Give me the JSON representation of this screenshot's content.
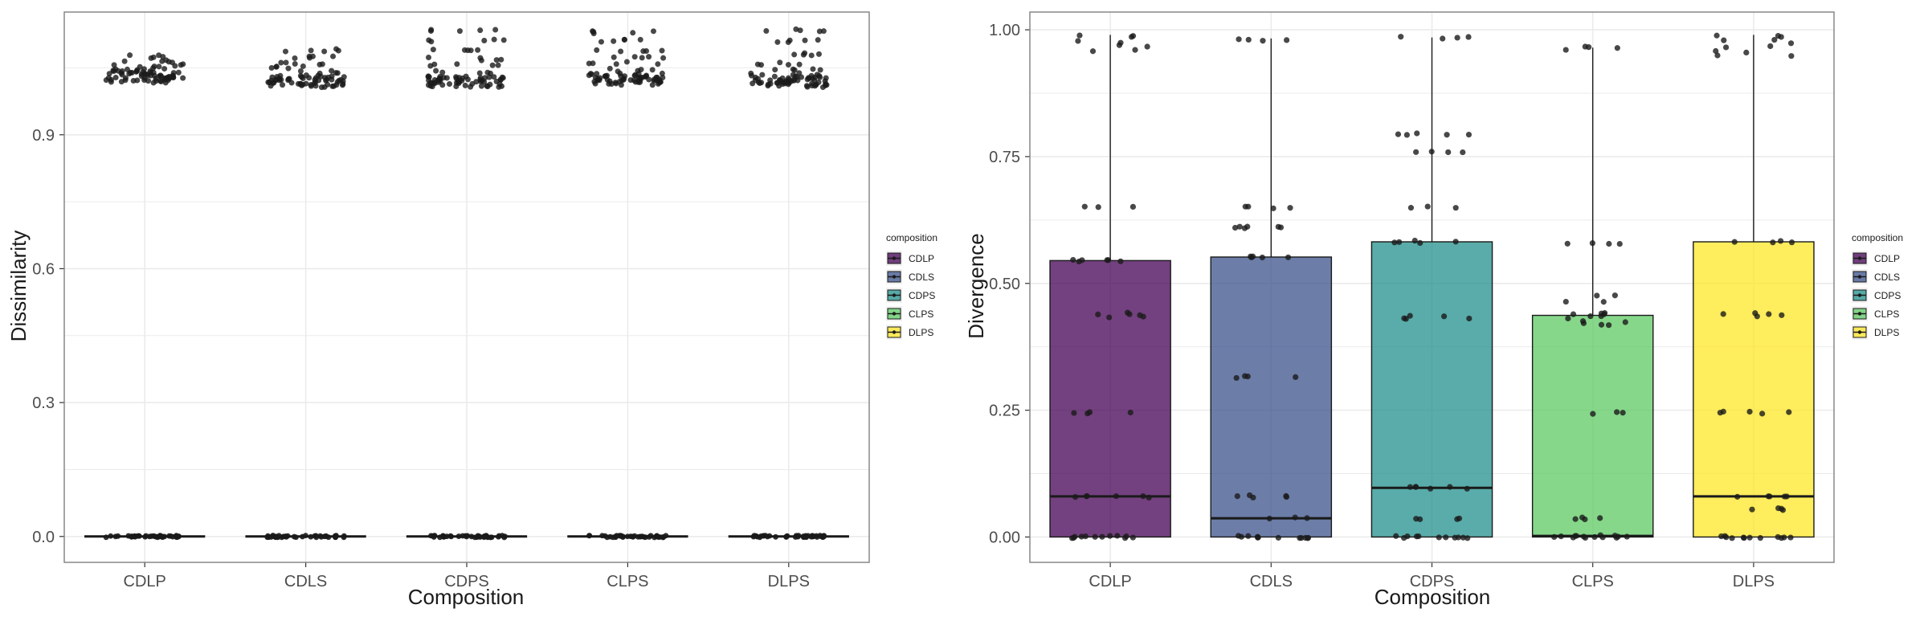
{
  "colors": {
    "CDLP": "#440154",
    "CDLS": "#3b528b",
    "CDPS": "#21908c",
    "CLPS": "#5dc963",
    "DLPS": "#fde725",
    "point": "#1a1a1a",
    "grid": "#ebebeb",
    "panel_border": "#7f7f7f",
    "text": "#1a1a1a",
    "tick_text": "#4d4d4d"
  },
  "chart_data": [
    {
      "type": "boxplot_with_jitter",
      "xlabel": "Composition",
      "ylabel": "Dissimilarity",
      "categories": [
        "CDLP",
        "CDLS",
        "CDPS",
        "CLPS",
        "DLPS"
      ],
      "yticks": [
        "0.0",
        "0.3",
        "0.6",
        "0.9"
      ],
      "ytick_values": [
        0,
        0.3,
        0.6,
        0.9
      ],
      "ylim": [
        -0.058,
        1.175
      ],
      "legend": {
        "title": "composition",
        "position": "right",
        "entries": [
          "CDLP",
          "CDLS",
          "CDPS",
          "CLPS",
          "DLPS"
        ]
      },
      "boxes": [
        {
          "category": "CDLP",
          "q1": 0,
          "median": 0,
          "q3": 0,
          "lower": 0,
          "upper": 0
        },
        {
          "category": "CDLS",
          "q1": 0,
          "median": 0,
          "q3": 0,
          "lower": 0,
          "upper": 0
        },
        {
          "category": "CDPS",
          "q1": 0,
          "median": 0,
          "q3": 0,
          "lower": 0,
          "upper": 0
        },
        {
          "category": "CLPS",
          "q1": 0,
          "median": 0,
          "q3": 0,
          "lower": 0,
          "upper": 0
        },
        {
          "category": "DLPS",
          "q1": 0,
          "median": 0,
          "q3": 0,
          "lower": 0,
          "upper": 0
        }
      ],
      "outlier_clusters": [
        {
          "category": "CDLP",
          "values": [
            1.02,
            1.025,
            1.03,
            1.035,
            1.04,
            1.045,
            1.05,
            1.055,
            1.065,
            1.075
          ]
        },
        {
          "category": "CDLS",
          "values": [
            1.01,
            1.015,
            1.02,
            1.025,
            1.03,
            1.04,
            1.05,
            1.06,
            1.075,
            1.09
          ]
        },
        {
          "category": "CDPS",
          "values": [
            1.01,
            1.015,
            1.02,
            1.025,
            1.03,
            1.04,
            1.055,
            1.07,
            1.09,
            1.11,
            1.135
          ]
        },
        {
          "category": "CLPS",
          "values": [
            1.015,
            1.02,
            1.025,
            1.03,
            1.035,
            1.045,
            1.06,
            1.075,
            1.09,
            1.11,
            1.13
          ]
        },
        {
          "category": "DLPS",
          "values": [
            1.01,
            1.015,
            1.02,
            1.025,
            1.03,
            1.035,
            1.045,
            1.06,
            1.08,
            1.11,
            1.135
          ]
        }
      ],
      "zero_points_per_category": 40
    },
    {
      "type": "boxplot_with_jitter",
      "xlabel": "Composition",
      "ylabel": "Divergence",
      "categories": [
        "CDLP",
        "CDLS",
        "CDPS",
        "CLPS",
        "DLPS"
      ],
      "yticks": [
        "0.00",
        "0.25",
        "0.50",
        "0.75",
        "1.00"
      ],
      "ytick_values": [
        0,
        0.25,
        0.5,
        0.75,
        1.0
      ],
      "ylim": [
        -0.05,
        1.035
      ],
      "legend": {
        "title": "composition",
        "position": "right",
        "entries": [
          "CDLP",
          "CDLS",
          "CDPS",
          "CLPS",
          "DLPS"
        ]
      },
      "boxes": [
        {
          "category": "CDLP",
          "q1": 0,
          "median": 0.08,
          "q3": 0.545,
          "lower": 0,
          "upper": 0.99
        },
        {
          "category": "CDLS",
          "q1": 0,
          "median": 0.037,
          "q3": 0.552,
          "lower": 0,
          "upper": 0.983
        },
        {
          "category": "CDPS",
          "q1": 0,
          "median": 0.097,
          "q3": 0.582,
          "lower": 0,
          "upper": 0.985
        },
        {
          "category": "CLPS",
          "q1": 0,
          "median": 0.002,
          "q3": 0.437,
          "lower": 0,
          "upper": 0.965
        },
        {
          "category": "DLPS",
          "q1": 0,
          "median": 0.08,
          "q3": 0.582,
          "lower": 0,
          "upper": 0.99
        }
      ],
      "points": [
        {
          "category": "CDLP",
          "values": [
            0,
            0,
            0,
            0,
            0,
            0,
            0,
            0,
            0,
            0,
            0,
            0,
            0.08,
            0.08,
            0.08,
            0.08,
            0.08,
            0.08,
            0.245,
            0.245,
            0.245,
            0.245,
            0.435,
            0.435,
            0.44,
            0.44,
            0.44,
            0.435,
            0.545,
            0.545,
            0.545,
            0.545,
            0.545,
            0.545,
            0.65,
            0.65,
            0.65,
            0.96,
            0.965,
            0.97,
            0.975,
            0.98,
            0.985,
            0.99,
            0.99,
            0.96
          ]
        },
        {
          "category": "CDLS",
          "values": [
            0,
            0,
            0,
            0,
            0,
            0,
            0,
            0,
            0,
            0,
            0,
            0,
            0.037,
            0.037,
            0.037,
            0.08,
            0.08,
            0.08,
            0.08,
            0.08,
            0.315,
            0.315,
            0.315,
            0.315,
            0.552,
            0.552,
            0.552,
            0.552,
            0.552,
            0.61,
            0.61,
            0.61,
            0.61,
            0.61,
            0.61,
            0.65,
            0.65,
            0.65,
            0.65,
            0.98,
            0.98,
            0.98,
            0.983
          ]
        },
        {
          "category": "CDPS",
          "values": [
            0,
            0,
            0,
            0,
            0,
            0,
            0,
            0,
            0,
            0,
            0,
            0.035,
            0.035,
            0.035,
            0.035,
            0.097,
            0.097,
            0.097,
            0.097,
            0.097,
            0.097,
            0.43,
            0.43,
            0.43,
            0.435,
            0.435,
            0.58,
            0.582,
            0.582,
            0.582,
            0.582,
            0.65,
            0.65,
            0.65,
            0.76,
            0.76,
            0.76,
            0.76,
            0.795,
            0.795,
            0.795,
            0.795,
            0.795,
            0.985,
            0.985,
            0.985,
            0.985
          ]
        },
        {
          "category": "CLPS",
          "values": [
            0,
            0,
            0,
            0,
            0,
            0,
            0,
            0,
            0,
            0,
            0,
            0,
            0.002,
            0.002,
            0.037,
            0.037,
            0.037,
            0.037,
            0.245,
            0.245,
            0.245,
            0.42,
            0.42,
            0.42,
            0.425,
            0.425,
            0.43,
            0.437,
            0.437,
            0.44,
            0.44,
            0.44,
            0.44,
            0.465,
            0.465,
            0.475,
            0.475,
            0.58,
            0.58,
            0.58,
            0.58,
            0.965,
            0.965,
            0.965,
            0.962
          ]
        },
        {
          "category": "DLPS",
          "values": [
            0,
            0,
            0,
            0,
            0,
            0,
            0,
            0,
            0,
            0,
            0,
            0,
            0.055,
            0.055,
            0.055,
            0.055,
            0.08,
            0.08,
            0.08,
            0.08,
            0.08,
            0.245,
            0.245,
            0.245,
            0.245,
            0.245,
            0.435,
            0.435,
            0.44,
            0.44,
            0.44,
            0.582,
            0.582,
            0.582,
            0.582,
            0.95,
            0.95,
            0.955,
            0.96,
            0.965,
            0.97,
            0.975,
            0.98,
            0.985,
            0.99,
            0.99,
            0.98
          ]
        }
      ]
    }
  ]
}
